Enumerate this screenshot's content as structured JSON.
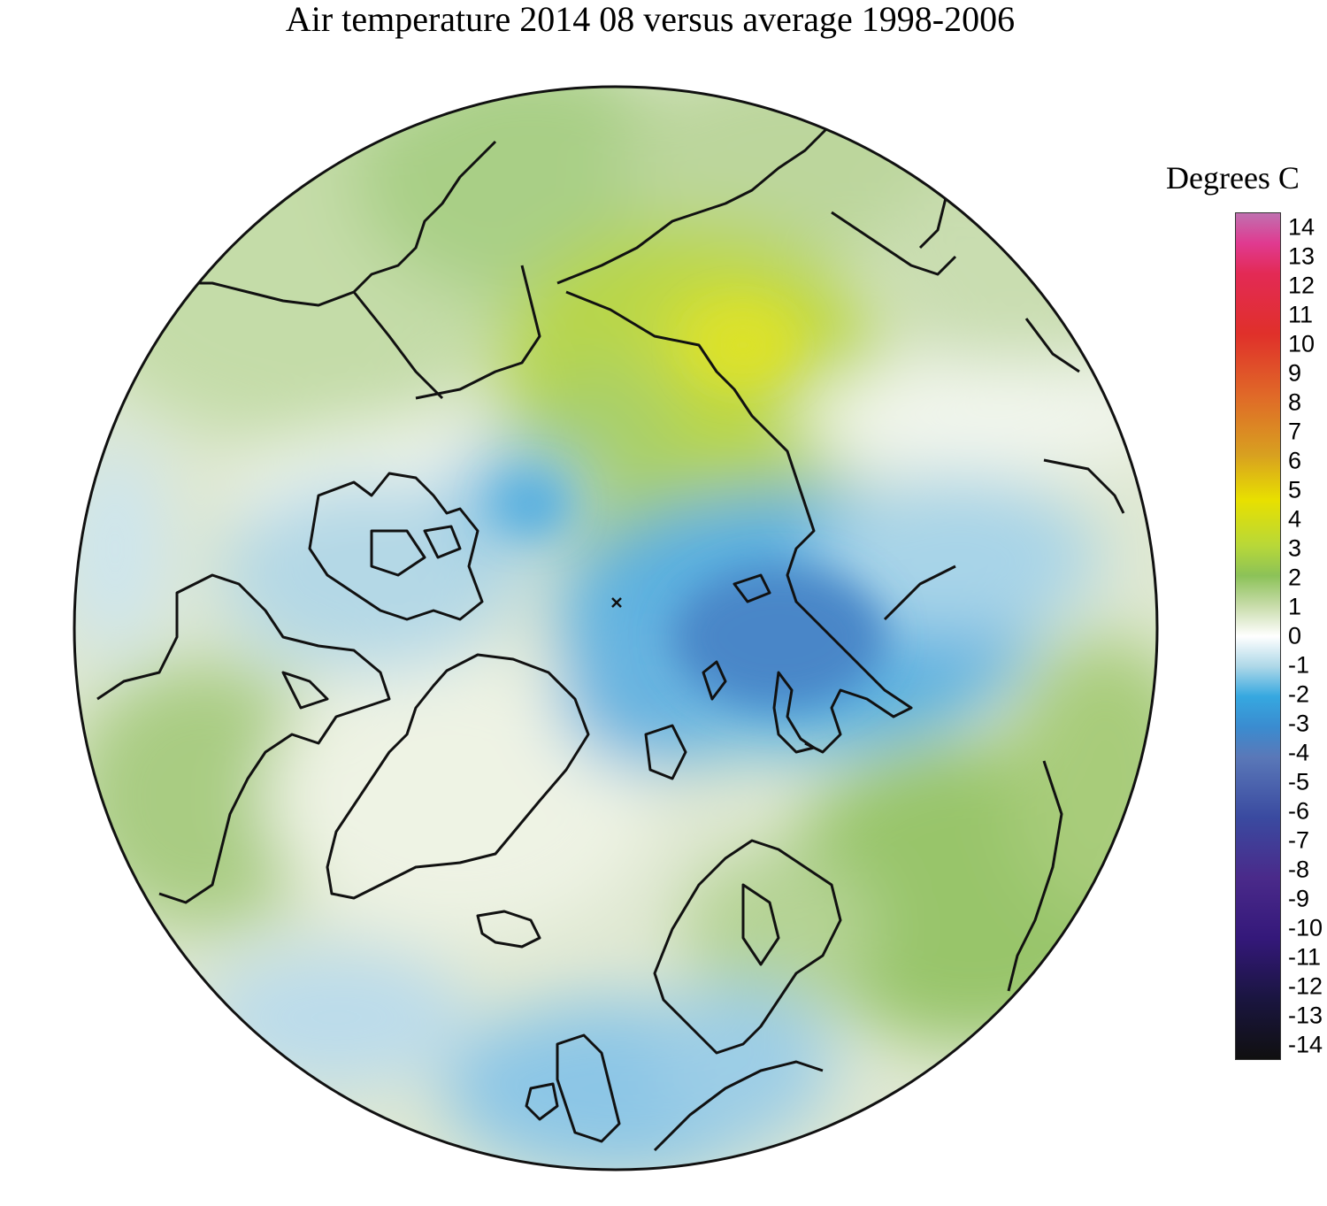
{
  "title": "Air temperature 2014 08 versus average 1998-2006",
  "legend": {
    "title": "Degrees C",
    "ticks": [
      "14",
      "13",
      "12",
      "11",
      "10",
      "9",
      "8",
      "7",
      "6",
      "5",
      "4",
      "3",
      "2",
      "1",
      "0",
      "-1",
      "-2",
      "-3",
      "-4",
      "-5",
      "-6",
      "-7",
      "-8",
      "-9",
      "-10",
      "-11",
      "-12",
      "-13",
      "-14"
    ],
    "stops": [
      {
        "value": 14,
        "color": "#c070b0"
      },
      {
        "value": 13,
        "color": "#e03a90"
      },
      {
        "value": 12,
        "color": "#e32a55"
      },
      {
        "value": 10,
        "color": "#e0302a"
      },
      {
        "value": 8,
        "color": "#e06828"
      },
      {
        "value": 6,
        "color": "#d8a020"
      },
      {
        "value": 4.5,
        "color": "#e8e000"
      },
      {
        "value": 3,
        "color": "#b8d838"
      },
      {
        "value": 2,
        "color": "#8cc258"
      },
      {
        "value": 1,
        "color": "#c8dcaa"
      },
      {
        "value": 0,
        "color": "#ffffff"
      },
      {
        "value": -1,
        "color": "#aed8e8"
      },
      {
        "value": -2,
        "color": "#36a8e0"
      },
      {
        "value": -3,
        "color": "#3a8cd0"
      },
      {
        "value": -4,
        "color": "#5a78b8"
      },
      {
        "value": -6,
        "color": "#3a4aa0"
      },
      {
        "value": -8,
        "color": "#4a2a8a"
      },
      {
        "value": -10,
        "color": "#34187a"
      },
      {
        "value": -12,
        "color": "#1a1540"
      },
      {
        "value": -14,
        "color": "#101010"
      }
    ]
  },
  "map": {
    "projection": "north polar stereographic",
    "pole_marker": "x"
  }
}
